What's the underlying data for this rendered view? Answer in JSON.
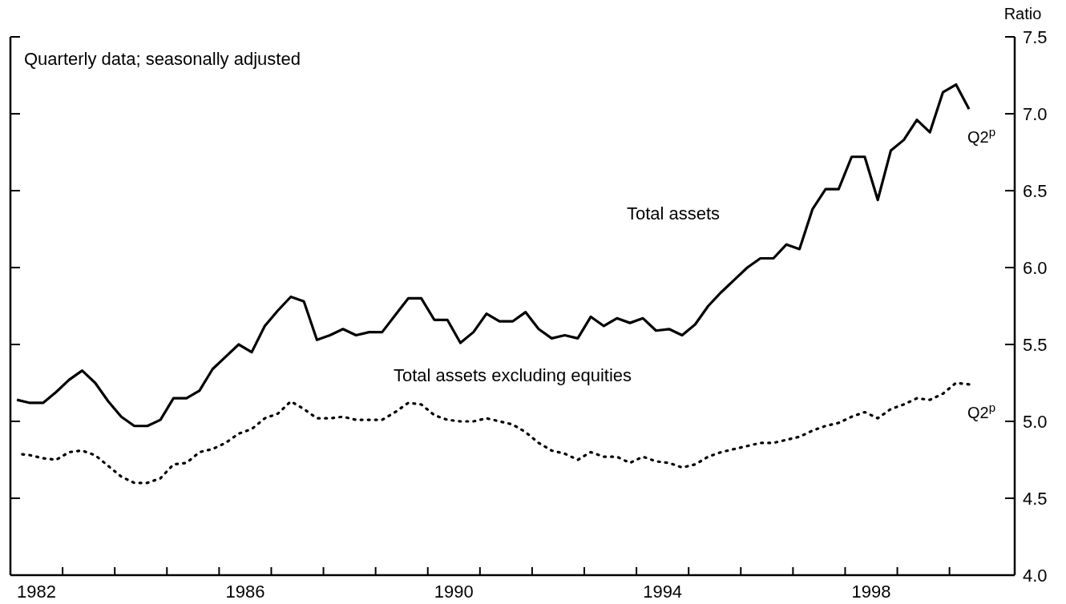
{
  "chart_data": {
    "type": "line",
    "ylabel": "Ratio",
    "annotations": [
      "Quarterly data; seasonally adjusted",
      {
        "text": "Q2$^{p}$",
        "x": 2000.375,
        "y": 7.03
      },
      {
        "text": "Q2$^{p}$",
        "x": 2000.375,
        "y": 5.24
      }
    ],
    "x": [
      1982.125,
      1982.375,
      1982.625,
      1982.875,
      1983.125,
      1983.375,
      1983.625,
      1983.875,
      1984.125,
      1984.375,
      1984.625,
      1984.875,
      1985.125,
      1985.375,
      1985.625,
      1985.875,
      1986.125,
      1986.375,
      1986.625,
      1986.875,
      1987.125,
      1987.375,
      1987.625,
      1987.875,
      1988.125,
      1988.375,
      1988.625,
      1988.875,
      1989.125,
      1989.375,
      1989.625,
      1989.875,
      1990.125,
      1990.375,
      1990.625,
      1990.875,
      1991.125,
      1991.375,
      1991.625,
      1991.875,
      1992.125,
      1992.375,
      1992.625,
      1992.875,
      1993.125,
      1993.375,
      1993.625,
      1993.875,
      1994.125,
      1994.375,
      1994.625,
      1994.875,
      1995.125,
      1995.375,
      1995.625,
      1995.875,
      1996.125,
      1996.375,
      1996.625,
      1996.875,
      1997.125,
      1997.375,
      1997.625,
      1997.875,
      1998.125,
      1998.375,
      1998.625,
      1998.875,
      1999.125,
      1999.375,
      1999.625,
      1999.875,
      2000.125,
      2000.375
    ],
    "series": [
      {
        "name": "Total assets",
        "color": "#000000",
        "line_style": "solid",
        "values": [
          5.14,
          5.12,
          5.12,
          5.19,
          5.27,
          5.33,
          5.25,
          5.13,
          5.03,
          4.97,
          4.97,
          5.01,
          5.15,
          5.15,
          5.2,
          5.34,
          5.42,
          5.5,
          5.45,
          5.62,
          5.72,
          5.81,
          5.78,
          5.53,
          5.56,
          5.6,
          5.56,
          5.58,
          5.58,
          5.69,
          5.8,
          5.8,
          5.66,
          5.66,
          5.51,
          5.58,
          5.7,
          5.65,
          5.65,
          5.71,
          5.6,
          5.54,
          5.56,
          5.54,
          5.68,
          5.62,
          5.67,
          5.64,
          5.67,
          5.59,
          5.6,
          5.56,
          5.63,
          5.75,
          5.84,
          5.92,
          6.0,
          6.06,
          6.06,
          6.15,
          6.12,
          6.38,
          6.51,
          6.51,
          6.72,
          6.72,
          6.44,
          6.76,
          6.83,
          6.96,
          6.88,
          7.14,
          7.19,
          7.03
        ]
      },
      {
        "name": "Total assets excluding equities",
        "color": "#000000",
        "line_style": "dotted",
        "values": [
          4.79,
          4.78,
          4.76,
          4.75,
          4.8,
          4.81,
          4.78,
          4.71,
          4.64,
          4.6,
          4.6,
          4.63,
          4.72,
          4.73,
          4.8,
          4.82,
          4.86,
          4.92,
          4.95,
          5.02,
          5.05,
          5.13,
          5.08,
          5.02,
          5.02,
          5.03,
          5.01,
          5.01,
          5.01,
          5.06,
          5.12,
          5.11,
          5.04,
          5.01,
          5.0,
          5.0,
          5.02,
          5.0,
          4.98,
          4.93,
          4.86,
          4.81,
          4.79,
          4.75,
          4.8,
          4.77,
          4.77,
          4.73,
          4.77,
          4.74,
          4.73,
          4.7,
          4.72,
          4.77,
          4.8,
          4.82,
          4.84,
          4.86,
          4.86,
          4.88,
          4.9,
          4.94,
          4.97,
          4.99,
          5.03,
          5.06,
          5.02,
          5.08,
          5.11,
          5.15,
          5.14,
          5.18,
          5.25,
          5.24
        ]
      }
    ],
    "xlim": [
      1982,
      2001.25
    ],
    "xticks": [
      {
        "value": 1982.5,
        "label": "1982"
      },
      {
        "value": 1986.5,
        "label": "1986"
      },
      {
        "value": 1990.5,
        "label": "1990"
      },
      {
        "value": 1994.5,
        "label": "1994"
      },
      {
        "value": 1998.5,
        "label": "1998"
      },
      {
        "value": 1983,
        "label": null
      },
      {
        "value": 1984,
        "label": null
      },
      {
        "value": 1985,
        "label": null
      },
      {
        "value": 1986,
        "label": null
      },
      {
        "value": 1987,
        "label": null
      },
      {
        "value": 1988,
        "label": null
      },
      {
        "value": 1989,
        "label": null
      },
      {
        "value": 1990,
        "label": null
      },
      {
        "value": 1991,
        "label": null
      },
      {
        "value": 1992,
        "label": null
      },
      {
        "value": 1993,
        "label": null
      },
      {
        "value": 1994,
        "label": null
      },
      {
        "value": 1995,
        "label": null
      },
      {
        "value": 1996,
        "label": null
      },
      {
        "value": 1997,
        "label": null
      },
      {
        "value": 1998,
        "label": null
      },
      {
        "value": 1999,
        "label": null
      },
      {
        "value": 2000,
        "label": null
      }
    ],
    "ylim": [
      4,
      7.5
    ],
    "yticks": [
      {
        "value": 4,
        "label": "4.0"
      },
      {
        "value": 4.5,
        "label": "4.5"
      },
      {
        "value": 5,
        "label": "5.0"
      },
      {
        "value": 5.5,
        "label": "5.5"
      },
      {
        "value": 6,
        "label": "6.0"
      },
      {
        "value": 6.5,
        "label": "6.5"
      },
      {
        "value": 7,
        "label": "7.0"
      },
      {
        "value": 7.5,
        "label": "7.5"
      }
    ],
    "grid": false,
    "marker": "none"
  }
}
